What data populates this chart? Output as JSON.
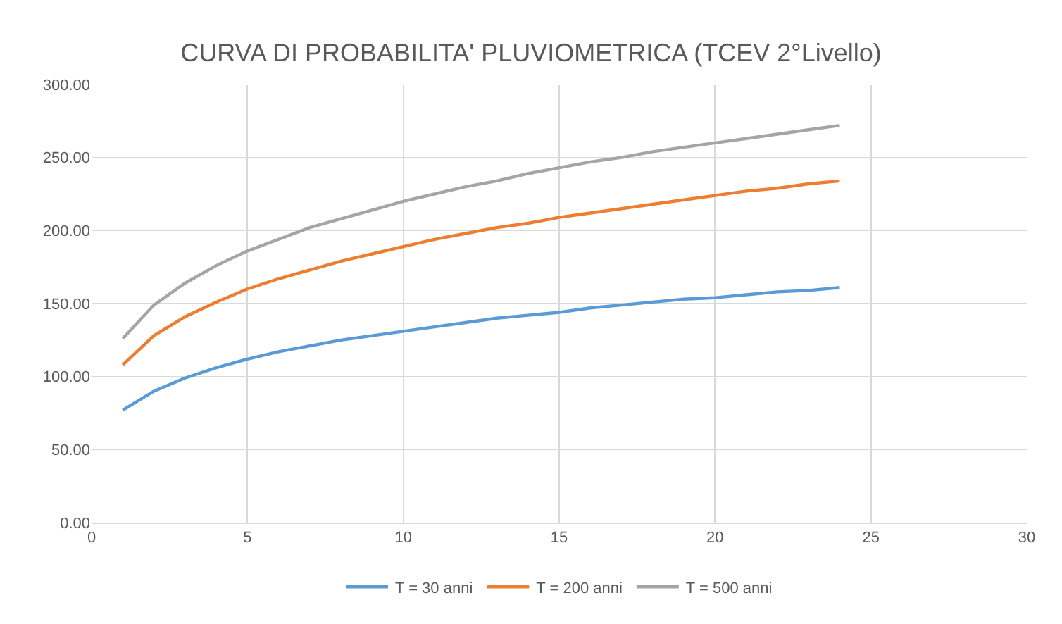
{
  "chart_data": {
    "type": "line",
    "title": "CURVA DI PROBABILITA' PLUVIOMETRICA (TCEV 2°Livello)",
    "x": [
      1,
      2,
      3,
      4,
      5,
      6,
      7,
      8,
      9,
      10,
      11,
      12,
      13,
      14,
      15,
      16,
      17,
      18,
      19,
      20,
      21,
      22,
      23,
      24
    ],
    "series": [
      {
        "name": "T = 30 anni",
        "color": "#5b9bd5",
        "values": [
          77,
          90,
          99,
          106,
          112,
          117,
          121,
          125,
          128,
          131,
          134,
          137,
          140,
          142,
          144,
          147,
          149,
          151,
          153,
          154,
          156,
          158,
          159,
          161
        ]
      },
      {
        "name": "T = 200 anni",
        "color": "#ed7d31",
        "values": [
          108,
          128,
          141,
          151,
          160,
          167,
          173,
          179,
          184,
          189,
          194,
          198,
          202,
          205,
          209,
          212,
          215,
          218,
          221,
          224,
          227,
          229,
          232,
          234
        ]
      },
      {
        "name": "T = 500 anni",
        "color": "#a5a5a5",
        "values": [
          126,
          149,
          164,
          176,
          186,
          194,
          202,
          208,
          214,
          220,
          225,
          230,
          234,
          239,
          243,
          247,
          250,
          254,
          257,
          260,
          263,
          266,
          269,
          272
        ]
      }
    ],
    "xlim": [
      0,
      30
    ],
    "xticks": [
      0,
      5,
      10,
      15,
      20,
      25,
      30
    ],
    "ylim": [
      0,
      300
    ],
    "yticks": [
      {
        "value": 0,
        "label": "0.00"
      },
      {
        "value": 50,
        "label": "50.00"
      },
      {
        "value": 100,
        "label": "100.00"
      },
      {
        "value": 150,
        "label": "150.00"
      },
      {
        "value": 200,
        "label": "200.00"
      },
      {
        "value": 250,
        "label": "250.00"
      },
      {
        "value": 300,
        "label": "300.00"
      }
    ],
    "grid": true,
    "legend": "bottom",
    "marker": "none",
    "line_style": "solid"
  }
}
